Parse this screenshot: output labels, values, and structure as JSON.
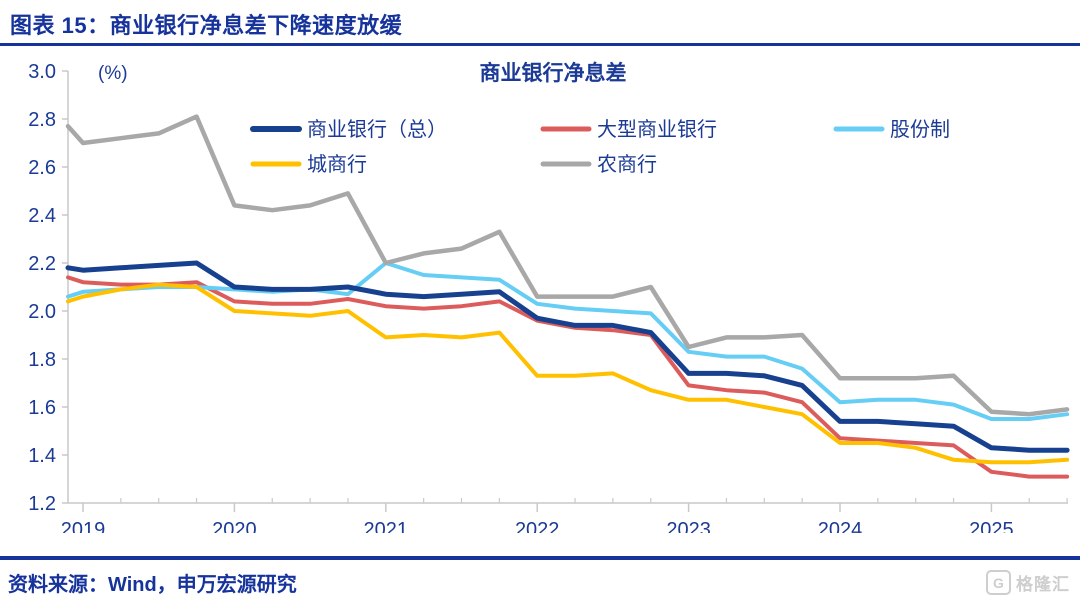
{
  "page": {
    "header_title": "图表 15：商业银行净息差下降速度放缓",
    "source_text": "资料来源：Wind，申万宏源研究",
    "watermark_text": "格隆汇",
    "watermark_icon": "G"
  },
  "colors": {
    "header_navy": "#16339B",
    "text_navy": "#1B3A96",
    "axis_gray": "#C9C9C9",
    "watermark_gray": "#C9C9C9"
  },
  "chart_data": {
    "type": "line",
    "title": "商业银行净息差",
    "unit_label": "(%)",
    "ylim": [
      1.2,
      3.0
    ],
    "ytick_step": 0.2,
    "grid": false,
    "legend_position": "top-inside-two-rows",
    "x_year_labels": [
      "2019",
      "2020",
      "2021",
      "2022",
      "2023",
      "2024",
      "2025"
    ],
    "x_quarters": [
      "2019Q1",
      "2019Q2",
      "2019Q3",
      "2019Q4",
      "2020Q1",
      "2020Q2",
      "2020Q3",
      "2020Q4",
      "2021Q1",
      "2021Q2",
      "2021Q3",
      "2021Q4",
      "2022Q1",
      "2022Q2",
      "2022Q3",
      "2022Q4",
      "2023Q1",
      "2023Q2",
      "2023Q3",
      "2023Q4",
      "2024Q1",
      "2024Q2",
      "2024Q3",
      "2024Q4",
      "2025Q1",
      "2025Q2",
      "2025Q3"
    ],
    "series": [
      {
        "name": "商业银行（总）",
        "color": "#17418F",
        "width": 5,
        "edge_value": 2.18,
        "values": [
          2.17,
          2.18,
          2.19,
          2.2,
          2.1,
          2.09,
          2.09,
          2.1,
          2.07,
          2.06,
          2.07,
          2.08,
          1.97,
          1.94,
          1.94,
          1.91,
          1.74,
          1.74,
          1.73,
          1.69,
          1.54,
          1.54,
          1.53,
          1.52,
          1.43,
          1.42,
          1.42
        ]
      },
      {
        "name": "大型商业银行",
        "color": "#DC5C5C",
        "width": 4,
        "edge_value": 2.14,
        "values": [
          2.12,
          2.11,
          2.11,
          2.12,
          2.04,
          2.03,
          2.03,
          2.05,
          2.02,
          2.01,
          2.02,
          2.04,
          1.96,
          1.93,
          1.92,
          1.9,
          1.69,
          1.67,
          1.66,
          1.62,
          1.47,
          1.46,
          1.45,
          1.44,
          1.33,
          1.31,
          1.31
        ]
      },
      {
        "name": "股份制",
        "color": "#66CDF5",
        "width": 4,
        "edge_value": 2.06,
        "values": [
          2.08,
          2.09,
          2.1,
          2.1,
          2.09,
          2.08,
          2.09,
          2.07,
          2.2,
          2.15,
          2.14,
          2.13,
          2.03,
          2.01,
          2.0,
          1.99,
          1.83,
          1.81,
          1.81,
          1.76,
          1.62,
          1.63,
          1.63,
          1.61,
          1.55,
          1.55,
          1.57
        ]
      },
      {
        "name": "城商行",
        "color": "#FFC000",
        "width": 4,
        "edge_value": 2.04,
        "values": [
          2.06,
          2.09,
          2.11,
          2.1,
          2.0,
          1.99,
          1.98,
          2.0,
          1.89,
          1.9,
          1.89,
          1.91,
          1.73,
          1.73,
          1.74,
          1.67,
          1.63,
          1.63,
          1.6,
          1.57,
          1.45,
          1.45,
          1.43,
          1.38,
          1.37,
          1.37,
          1.38
        ]
      },
      {
        "name": "农商行",
        "color": "#A8A8A8",
        "width": 4.5,
        "edge_value": 2.77,
        "values": [
          2.7,
          2.72,
          2.74,
          2.81,
          2.44,
          2.42,
          2.44,
          2.49,
          2.2,
          2.24,
          2.26,
          2.33,
          2.06,
          2.06,
          2.06,
          2.1,
          1.85,
          1.89,
          1.89,
          1.9,
          1.72,
          1.72,
          1.72,
          1.73,
          1.58,
          1.57,
          1.59
        ]
      }
    ]
  }
}
